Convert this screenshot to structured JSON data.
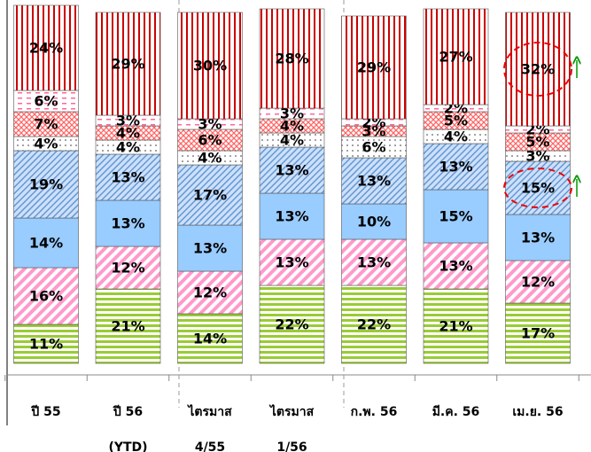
{
  "chart_data": {
    "type": "stacked_bar",
    "categories": [
      [
        "ปี 55"
      ],
      [
        "ปี 56",
        "(YTD)"
      ],
      [
        "ไตรมาส",
        "4/55"
      ],
      [
        "ไตรมาส",
        "1/56"
      ],
      [
        "ก.พ. 56"
      ],
      [
        "มี.ค. 56"
      ],
      [
        "เม.ย. 56"
      ]
    ],
    "series": [
      {
        "color": "#99cc33",
        "values": [
          11,
          21,
          14,
          22,
          22,
          21,
          17
        ],
        "value_labels": [
          "11%",
          "21%",
          "14%",
          "22%",
          "22%",
          "21%",
          "17%"
        ]
      },
      {
        "color": "#ff99cc",
        "values": [
          16,
          12,
          12,
          13,
          13,
          13,
          12
        ],
        "value_labels": [
          "16%",
          "12%",
          "12%",
          "13%",
          "13%",
          "13%",
          "12%"
        ]
      },
      {
        "color": "#99ccff",
        "values": [
          14,
          13,
          13,
          13,
          10,
          15,
          13
        ],
        "value_labels": [
          "14%",
          "13%",
          "13%",
          "13%",
          "10%",
          "15%",
          "13%"
        ]
      },
      {
        "color": "#6699cc",
        "values": [
          19,
          13,
          17,
          13,
          13,
          13,
          15
        ],
        "value_labels": [
          "19%",
          "13%",
          "17%",
          "13%",
          "13%",
          "13%",
          "15%"
        ]
      },
      {
        "color": "#333333",
        "values": [
          4,
          4,
          4,
          4,
          6,
          4,
          3
        ],
        "value_labels": [
          "4%",
          "4%",
          "4%",
          "4%",
          "6%",
          "4%",
          "3%"
        ]
      },
      {
        "color": "#ff6666",
        "values": [
          7,
          4,
          6,
          4,
          3,
          5,
          5
        ],
        "value_labels": [
          "7%",
          "4%",
          "6%",
          "4%",
          "3%",
          "5%",
          "5%"
        ]
      },
      {
        "color": "#ff6699",
        "values": [
          6,
          3,
          3,
          3,
          2,
          2,
          2
        ],
        "value_labels": [
          "6%",
          "3%",
          "3%",
          "3%",
          "2%",
          "2%",
          "2%"
        ]
      },
      {
        "color": "#cc0000",
        "values": [
          24,
          29,
          30,
          28,
          29,
          27,
          32
        ],
        "value_labels": [
          "24%",
          "29%",
          "30%",
          "28%",
          "29%",
          "27%",
          "32%"
        ]
      }
    ]
  }
}
